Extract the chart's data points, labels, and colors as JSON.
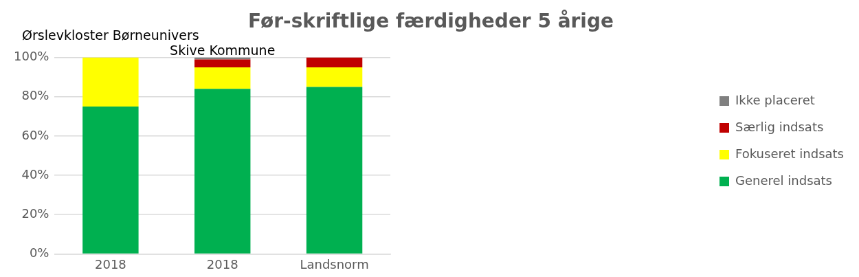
{
  "chart_data": {
    "type": "bar",
    "title": "Før-skriftlige færdigheder 5 årige",
    "categories": [
      "2018",
      "2018",
      "Landsnorm"
    ],
    "stacked": true,
    "series": [
      {
        "name": "Generel indsats",
        "color": "#00b050",
        "values": [
          75,
          84,
          85
        ]
      },
      {
        "name": "Fokuseret indsats",
        "color": "#ffff00",
        "values": [
          25,
          11,
          10
        ]
      },
      {
        "name": "Særlig indsats",
        "color": "#c00000",
        "values": [
          0,
          4,
          5
        ]
      },
      {
        "name": "Ikke placeret",
        "color": "#808080",
        "values": [
          0,
          1,
          0
        ]
      }
    ],
    "ylim": [
      0,
      100
    ],
    "yticks": [
      {
        "value": 0,
        "label": "0%"
      },
      {
        "value": 20,
        "label": "20%"
      },
      {
        "value": 40,
        "label": "40%"
      },
      {
        "value": 60,
        "label": "60%"
      },
      {
        "value": 80,
        "label": "80%"
      },
      {
        "value": 100,
        "label": "100%"
      }
    ],
    "grid": "y",
    "legend": "right",
    "annotations": [
      "Ørslevkloster Børneunivers",
      "Skive Kommune"
    ]
  }
}
